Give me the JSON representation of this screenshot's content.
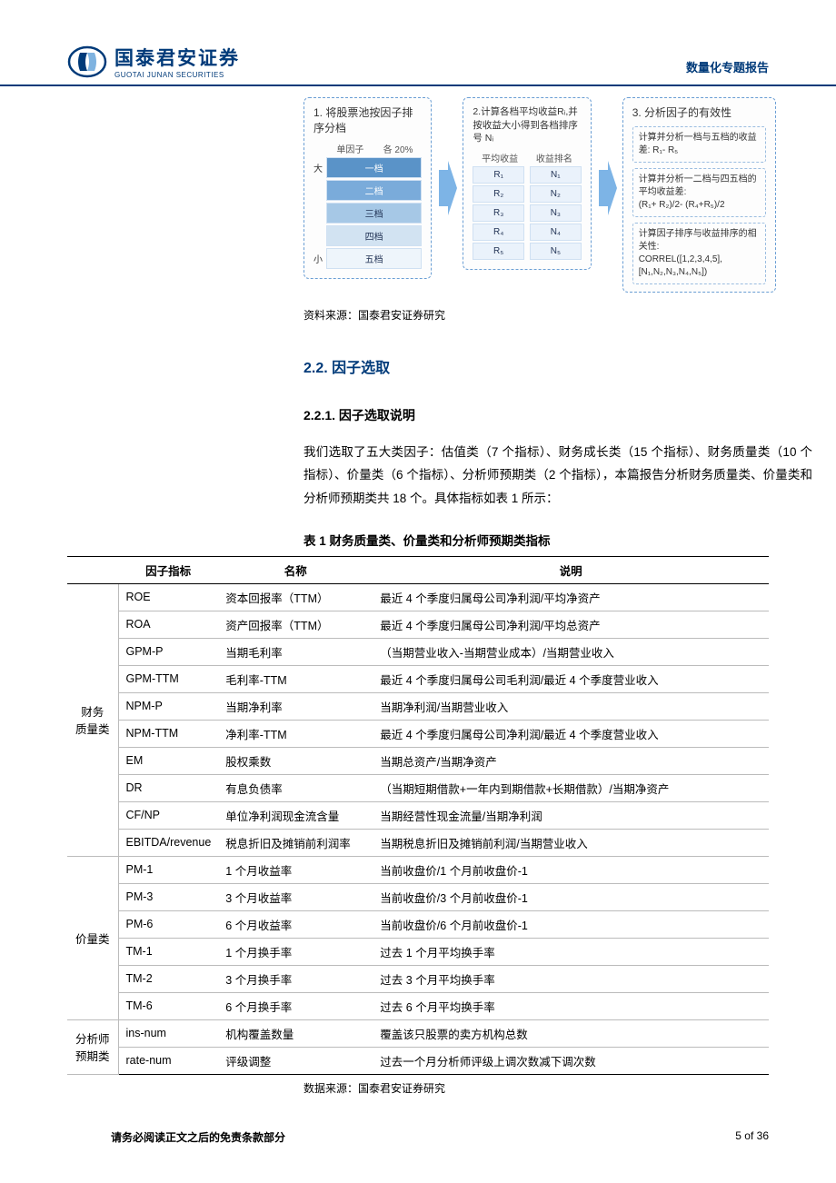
{
  "header": {
    "logo_cn": "国泰君安证券",
    "logo_en": "GUOTAI JUNAN SECURITIES",
    "right_label": "数量化专题报告"
  },
  "diagram": {
    "box1": {
      "title": "1. 将股票池按因子排序分档",
      "col_label_left": "单因子",
      "col_label_right": "各 20%",
      "side_top": "大",
      "side_bottom": "小",
      "tiers": [
        "一档",
        "二档",
        "三档",
        "四档",
        "五档"
      ]
    },
    "box2": {
      "title": "2.计算各档平均收益Rᵢ,并按收益大小得到各档排序号 Nᵢ",
      "col_label_left": "平均收益",
      "col_label_right": "收益排名",
      "rows": [
        {
          "r": "R₁",
          "n": "N₁"
        },
        {
          "r": "R₂",
          "n": "N₂"
        },
        {
          "r": "R₃",
          "n": "N₃"
        },
        {
          "r": "R₄",
          "n": "N₄"
        },
        {
          "r": "R₅",
          "n": "N₅"
        }
      ]
    },
    "box3": {
      "title": "3. 分析因子的有效性",
      "a1": "计算并分析一档与五档的收益差: R₁- R₅",
      "a2": "计算并分析一二档与四五档的平均收益差:\n(R₁+ R₂)/2- (R₄+R₅)/2",
      "a3": "计算因子排序与收益排序的相关性:\nCORREL([1,2,3,4,5],[N₁,N₂,N₃,N₄,N₅])"
    },
    "arrow_color": "#7db4e6",
    "box_border_color": "#6a9ed4"
  },
  "source1": "资料来源：国泰君安证券研究",
  "section_2_2": "2.2. 因子选取",
  "section_2_2_1": "2.2.1.  因子选取说明",
  "paragraph": "我们选取了五大类因子：估值类（7 个指标）、财务成长类（15 个指标）、财务质量类（10 个指标）、价量类（6 个指标）、分析师预期类（2 个指标），本篇报告分析财务质量类、价量类和分析师预期类共 18 个。具体指标如表 1 所示：",
  "table_title": "表 1  财务质量类、价量类和分析师预期类指标",
  "table": {
    "headers": [
      "",
      "因子指标",
      "名称",
      "说明"
    ],
    "groups": [
      {
        "category": "财务\n质量类",
        "rows": [
          [
            "ROE",
            "资本回报率（TTM）",
            "最近 4 个季度归属母公司净利润/平均净资产"
          ],
          [
            "ROA",
            "资产回报率（TTM）",
            "最近 4 个季度归属母公司净利润/平均总资产"
          ],
          [
            "GPM-P",
            "当期毛利率",
            "（当期营业收入-当期营业成本）/当期营业收入"
          ],
          [
            "GPM-TTM",
            "毛利率-TTM",
            "最近 4 个季度归属母公司毛利润/最近 4 个季度营业收入"
          ],
          [
            "NPM-P",
            "当期净利率",
            "当期净利润/当期营业收入"
          ],
          [
            "NPM-TTM",
            "净利率-TTM",
            "最近 4 个季度归属母公司净利润/最近 4 个季度营业收入"
          ],
          [
            "EM",
            "股权乘数",
            "当期总资产/当期净资产"
          ],
          [
            "DR",
            "有息负债率",
            "（当期短期借款+一年内到期借款+长期借款）/当期净资产"
          ],
          [
            "CF/NP",
            "单位净利润现金流含量",
            "当期经营性现金流量/当期净利润"
          ],
          [
            "EBITDA/revenue",
            "税息折旧及摊销前利润率",
            "当期税息折旧及摊销前利润/当期营业收入"
          ]
        ]
      },
      {
        "category": "价量类",
        "rows": [
          [
            "PM-1",
            "1 个月收益率",
            "当前收盘价/1 个月前收盘价-1"
          ],
          [
            "PM-3",
            "3 个月收益率",
            "当前收盘价/3 个月前收盘价-1"
          ],
          [
            "PM-6",
            "6 个月收益率",
            "当前收盘价/6 个月前收盘价-1"
          ],
          [
            "TM-1",
            "1 个月换手率",
            "过去 1 个月平均换手率"
          ],
          [
            "TM-2",
            "3 个月换手率",
            "过去 3 个月平均换手率"
          ],
          [
            "TM-6",
            "6 个月换手率",
            "过去 6 个月平均换手率"
          ]
        ]
      },
      {
        "category": "分析师\n预期类",
        "rows": [
          [
            "ins-num",
            "机构覆盖数量",
            "覆盖该只股票的卖方机构总数"
          ],
          [
            "rate-num",
            "评级调整",
            "过去一个月分析师评级上调次数减下调次数"
          ]
        ]
      }
    ]
  },
  "table_source": "数据来源：国泰君安证券研究",
  "footer": {
    "left": "请务必阅读正文之后的免责条款部分",
    "right": "5 of 36"
  },
  "colors": {
    "brand": "#003a79",
    "tier_colors": [
      "#5a93c8",
      "#7aabda",
      "#a6c8e6",
      "#d2e3f2",
      "#eef5fb"
    ]
  }
}
